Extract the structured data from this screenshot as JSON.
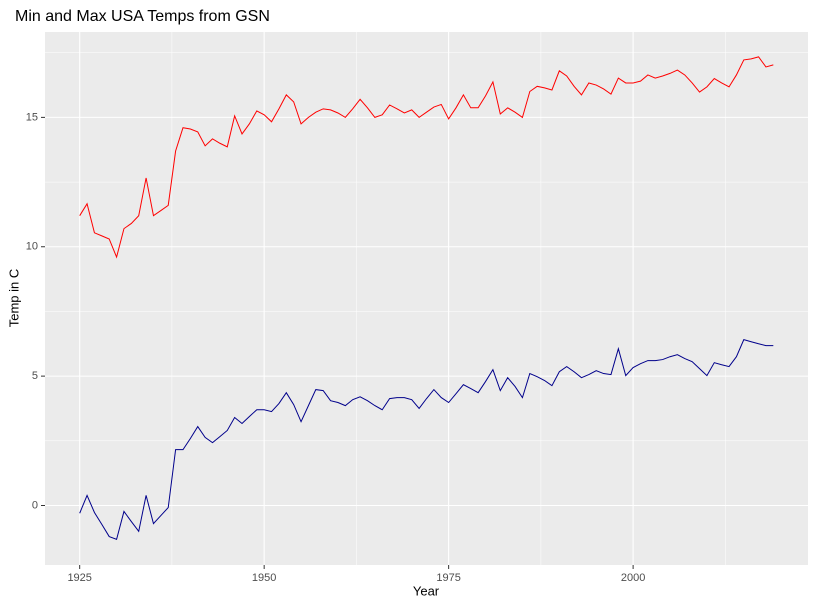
{
  "chart_data": {
    "type": "line",
    "title": "Min and Max USA Temps from GSN",
    "x_label": "Year",
    "y_label": "Temp in C",
    "x": [
      1925,
      1926,
      1927,
      1928,
      1929,
      1930,
      1931,
      1932,
      1933,
      1934,
      1935,
      1936,
      1937,
      1938,
      1939,
      1940,
      1941,
      1942,
      1943,
      1944,
      1945,
      1946,
      1947,
      1948,
      1949,
      1950,
      1951,
      1952,
      1953,
      1954,
      1955,
      1956,
      1957,
      1958,
      1959,
      1960,
      1961,
      1962,
      1963,
      1964,
      1965,
      1966,
      1967,
      1968,
      1969,
      1970,
      1971,
      1972,
      1973,
      1974,
      1975,
      1976,
      1977,
      1978,
      1979,
      1980,
      1981,
      1982,
      1983,
      1984,
      1985,
      1986,
      1987,
      1988,
      1989,
      1990,
      1991,
      1992,
      1993,
      1994,
      1995,
      1996,
      1997,
      1998,
      1999,
      2000,
      2001,
      2002,
      2003,
      2004,
      2005,
      2006,
      2007,
      2008,
      2009,
      2010,
      2011,
      2012,
      2013,
      2014,
      2015,
      2016,
      2017,
      2018,
      2019
    ],
    "series": [
      {
        "color": "#ff0000",
        "values": [
          11.2,
          11.66,
          10.54,
          10.42,
          10.3,
          9.6,
          10.7,
          10.9,
          11.2,
          12.66,
          11.2,
          11.4,
          11.6,
          13.7,
          14.6,
          14.55,
          14.44,
          13.9,
          14.17,
          14.0,
          13.86,
          15.06,
          14.36,
          14.75,
          15.25,
          15.1,
          14.83,
          15.33,
          15.87,
          15.6,
          14.75,
          15.0,
          15.2,
          15.33,
          15.29,
          15.17,
          15.0,
          15.33,
          15.7,
          15.37,
          15.0,
          15.1,
          15.48,
          15.33,
          15.17,
          15.29,
          15.0,
          15.2,
          15.4,
          15.5,
          14.94,
          15.37,
          15.87,
          15.37,
          15.37,
          15.83,
          16.37,
          15.13,
          15.37,
          15.2,
          15.0,
          16.0,
          16.2,
          16.14,
          16.06,
          16.8,
          16.6,
          16.2,
          15.87,
          16.33,
          16.25,
          16.1,
          15.9,
          16.52,
          16.33,
          16.33,
          16.4,
          16.64,
          16.52,
          16.6,
          16.7,
          16.83,
          16.64,
          16.33,
          15.98,
          16.18,
          16.5,
          16.33,
          16.18,
          16.64,
          17.22,
          17.26,
          17.34,
          16.95,
          17.03
        ]
      },
      {
        "color": "#00008b",
        "values": [
          -0.3,
          0.39,
          -0.27,
          -0.73,
          -1.2,
          -1.31,
          -0.23,
          -0.62,
          -1.0,
          0.39,
          -0.7,
          -0.39,
          -0.08,
          2.16,
          2.16,
          2.59,
          3.05,
          2.63,
          2.43,
          2.66,
          2.9,
          3.4,
          3.17,
          3.44,
          3.7,
          3.7,
          3.63,
          3.94,
          4.36,
          3.9,
          3.24,
          3.86,
          4.48,
          4.44,
          4.05,
          3.98,
          3.86,
          4.09,
          4.2,
          4.05,
          3.86,
          3.7,
          4.13,
          4.17,
          4.17,
          4.09,
          3.75,
          4.13,
          4.48,
          4.17,
          3.98,
          4.32,
          4.67,
          4.52,
          4.36,
          4.79,
          5.25,
          4.44,
          4.94,
          4.6,
          4.17,
          5.1,
          4.98,
          4.83,
          4.63,
          5.17,
          5.37,
          5.17,
          4.94,
          5.06,
          5.21,
          5.1,
          5.06,
          6.06,
          5.02,
          5.33,
          5.48,
          5.6,
          5.6,
          5.64,
          5.75,
          5.83,
          5.68,
          5.56,
          5.29,
          5.02,
          5.52,
          5.44,
          5.37,
          5.75,
          6.41,
          6.33,
          6.25,
          6.18,
          6.18
        ]
      }
    ],
    "xlim": [
      1920.3,
      2023.7
    ],
    "xticks": [
      1925,
      1950,
      1975,
      2000
    ],
    "ylim": [
      -2.3,
      18.3
    ],
    "yticks": [
      0,
      5,
      10,
      15
    ],
    "grid": true
  }
}
